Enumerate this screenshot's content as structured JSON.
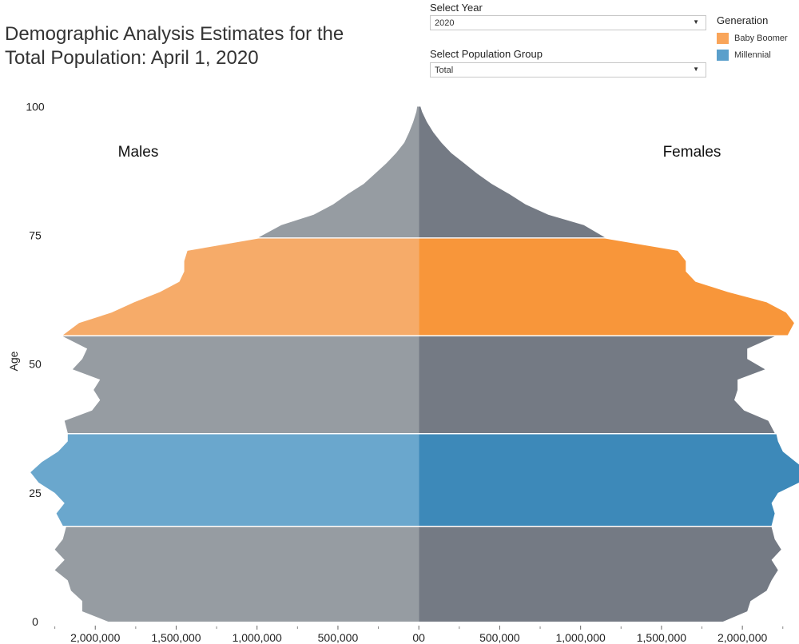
{
  "title_line1": "Demographic Analysis Estimates for the",
  "title_line2": "Total Population: April 1, 2020",
  "controls": {
    "year_label": "Select Year",
    "year_value": "2020",
    "group_label": "Select Population Group",
    "group_value": "Total"
  },
  "legend": {
    "title": "Generation",
    "items": [
      {
        "label": "Baby Boomer",
        "color": "#F9A55A"
      },
      {
        "label": "Millennial",
        "color": "#5A9FCB"
      }
    ]
  },
  "chart_data": {
    "type": "area",
    "orientation": "population-pyramid",
    "left_label": "Males",
    "right_label": "Females",
    "ylabel": "Age",
    "y_ticks": [
      0,
      25,
      50,
      75,
      100
    ],
    "x_ticks": [
      {
        "value": -2000000,
        "label": "2,000,000"
      },
      {
        "value": -1500000,
        "label": "1,500,000"
      },
      {
        "value": -1000000,
        "label": "1,000,000"
      },
      {
        "value": -500000,
        "label": "500,000"
      },
      {
        "value": 0,
        "label": "00"
      },
      {
        "value": 500000,
        "label": "500,000"
      },
      {
        "value": 1000000,
        "label": "1,000,000"
      },
      {
        "value": 1500000,
        "label": "1,500,000"
      },
      {
        "value": 2000000,
        "label": "2,000,000"
      }
    ],
    "xlim": [
      -2500000,
      2350000
    ],
    "ylim": [
      0,
      101
    ],
    "colors": {
      "male_default": "#969CA2",
      "female_default": "#747A84",
      "male_boomer": "#F6AB69",
      "female_boomer": "#F8963A",
      "male_millennial": "#6AA7CD",
      "female_millennial": "#3D89B9"
    },
    "segments": [
      {
        "generation": "Other",
        "from": 0,
        "to": 18
      },
      {
        "generation": "Millennial",
        "from": 19,
        "to": 36
      },
      {
        "generation": "Other",
        "from": 37,
        "to": 55
      },
      {
        "generation": "Baby Boomer",
        "from": 56,
        "to": 74
      },
      {
        "generation": "Other",
        "from": 75,
        "to": 100
      }
    ],
    "ages": [
      0,
      2,
      4,
      6,
      8,
      10,
      12,
      14,
      16,
      18,
      19,
      21,
      23,
      25,
      27,
      29,
      31,
      33,
      35,
      36,
      37,
      39,
      41,
      43,
      45,
      47,
      49,
      51,
      53,
      55,
      56,
      58,
      60,
      62,
      64,
      66,
      68,
      70,
      72,
      74,
      75,
      77,
      79,
      81,
      83,
      85,
      87,
      89,
      91,
      93,
      95,
      97,
      99,
      100
    ],
    "males": [
      1920000,
      2080000,
      2080000,
      2150000,
      2170000,
      2250000,
      2190000,
      2250000,
      2200000,
      2180000,
      2200000,
      2240000,
      2190000,
      2250000,
      2350000,
      2400000,
      2330000,
      2230000,
      2170000,
      2170000,
      2170000,
      2190000,
      2020000,
      1970000,
      2010000,
      1970000,
      2140000,
      2080000,
      2050000,
      2200000,
      2200000,
      2100000,
      1900000,
      1760000,
      1600000,
      1480000,
      1450000,
      1450000,
      1430000,
      990000,
      990000,
      850000,
      650000,
      530000,
      440000,
      340000,
      270000,
      200000,
      140000,
      90000,
      60000,
      35000,
      15000,
      10000
    ],
    "females": [
      1880000,
      2030000,
      2050000,
      2150000,
      2180000,
      2220000,
      2180000,
      2240000,
      2200000,
      2180000,
      2180000,
      2200000,
      2180000,
      2220000,
      2350000,
      2410000,
      2330000,
      2250000,
      2220000,
      2210000,
      2200000,
      2160000,
      2010000,
      1950000,
      1970000,
      1970000,
      2140000,
      2030000,
      2030000,
      2200000,
      2280000,
      2320000,
      2270000,
      2150000,
      1910000,
      1710000,
      1650000,
      1650000,
      1600000,
      1150000,
      1150000,
      1020000,
      800000,
      660000,
      560000,
      450000,
      360000,
      280000,
      200000,
      140000,
      90000,
      50000,
      20000,
      10000
    ]
  }
}
